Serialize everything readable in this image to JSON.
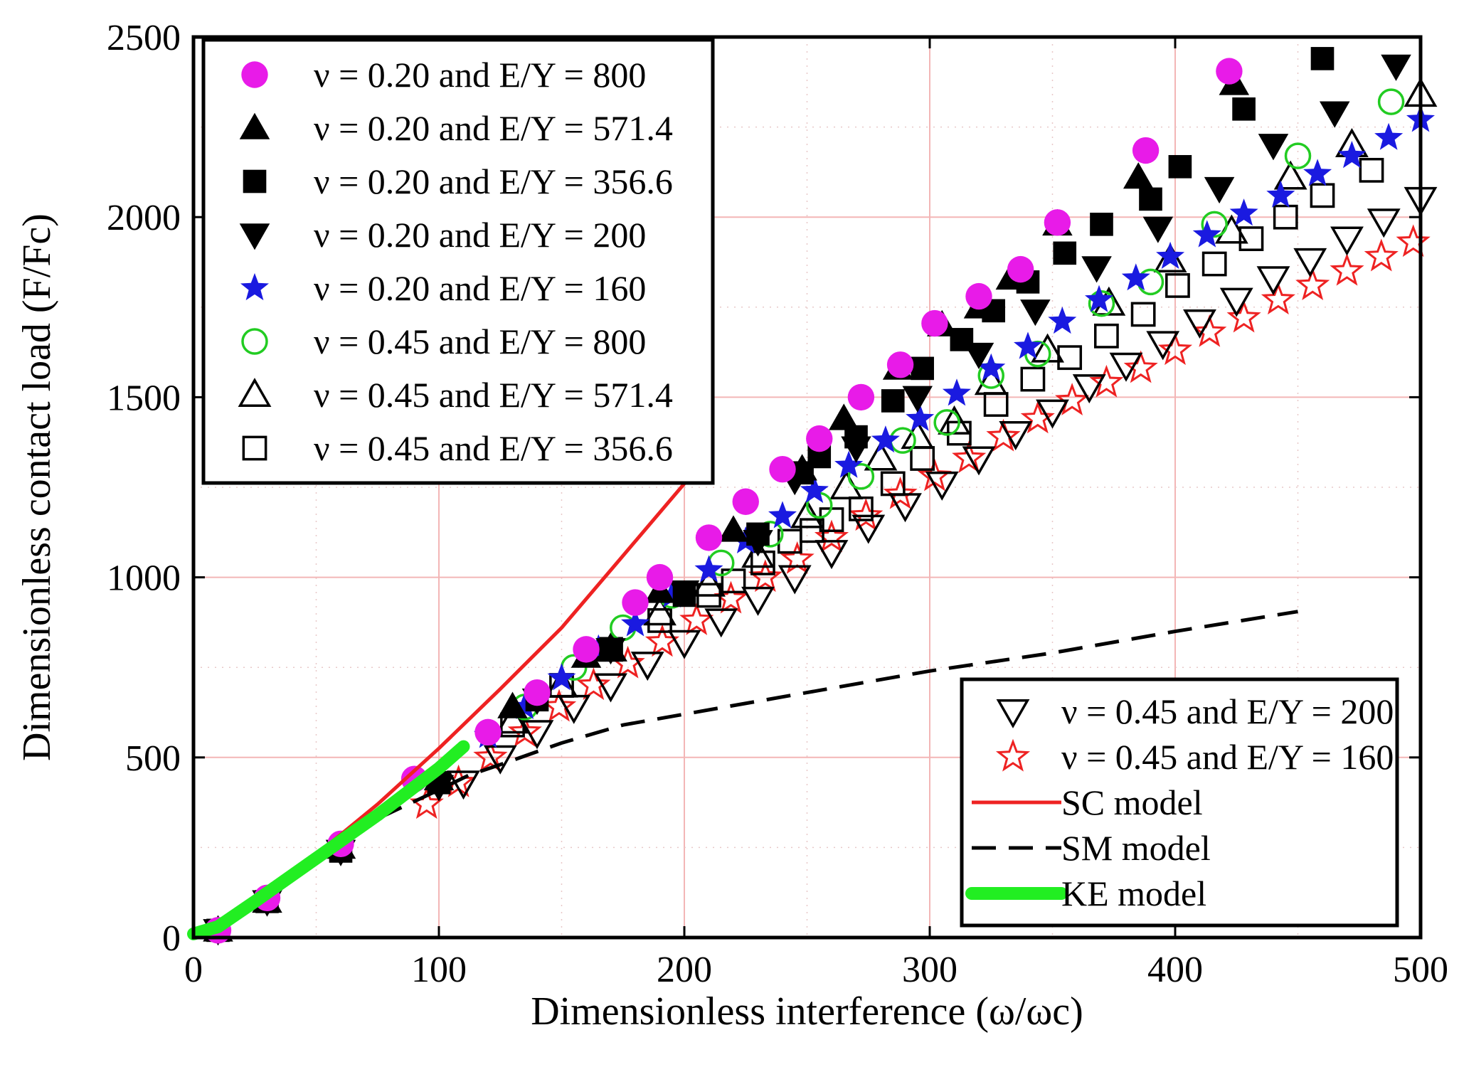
{
  "chart_data": {
    "type": "scatter",
    "xlabel": "Dimensionless interference (ω/ωc)",
    "ylabel": "Dimensionless contact load (F/Fc)",
    "xlim": [
      0,
      500
    ],
    "ylim": [
      0,
      2500
    ],
    "xticks": [
      "0",
      "100",
      "200",
      "300",
      "400",
      "500"
    ],
    "yticks": [
      "0",
      "500",
      "1000",
      "1500",
      "2000",
      "2500"
    ],
    "grid": true,
    "legend_positions": [
      "top-left",
      "bottom-right"
    ],
    "series": [
      {
        "name": "ν = 0.20 and E/Y = 800",
        "marker": "circle-filled",
        "color": "#e81be8",
        "x": [
          10,
          30,
          60,
          90,
          120,
          140,
          160,
          180,
          190,
          210,
          225,
          240,
          255,
          272,
          288,
          302,
          320,
          337,
          352,
          388,
          422
        ],
        "y": [
          20,
          110,
          260,
          440,
          570,
          680,
          800,
          930,
          1000,
          1110,
          1210,
          1300,
          1385,
          1500,
          1590,
          1705,
          1780,
          1855,
          1985,
          2185,
          2405
        ]
      },
      {
        "name": "ν = 0.20 and E/Y = 571.4",
        "marker": "triangle-up-filled",
        "color": "#000000",
        "x": [
          10,
          30,
          60,
          100,
          130,
          160,
          190,
          220,
          248,
          265,
          287,
          305,
          320,
          333,
          352,
          385,
          424
        ],
        "y": [
          20,
          100,
          250,
          440,
          640,
          780,
          960,
          1130,
          1300,
          1440,
          1580,
          1700,
          1750,
          1830,
          1980,
          2110,
          2370
        ]
      },
      {
        "name": "ν = 0.20 and E/Y = 356.6",
        "marker": "square-filled",
        "color": "#000000",
        "x": [
          10,
          30,
          60,
          100,
          140,
          170,
          200,
          230,
          248,
          255,
          270,
          285,
          297,
          313,
          326,
          340,
          355,
          370,
          390,
          402,
          428,
          460
        ],
        "y": [
          20,
          100,
          240,
          430,
          660,
          800,
          950,
          1120,
          1290,
          1335,
          1390,
          1490,
          1580,
          1660,
          1740,
          1820,
          1900,
          1980,
          2050,
          2140,
          2300,
          2440
        ]
      },
      {
        "name": "ν = 0.20 and E/Y = 200",
        "marker": "triangle-down-filled",
        "color": "#000000",
        "x": [
          10,
          30,
          60,
          100,
          140,
          170,
          200,
          230,
          245,
          270,
          295,
          320,
          343,
          368,
          393,
          418,
          440,
          465,
          490
        ],
        "y": [
          20,
          100,
          240,
          420,
          660,
          800,
          960,
          1100,
          1270,
          1360,
          1500,
          1620,
          1740,
          1860,
          1970,
          2080,
          2200,
          2290,
          2420
        ]
      },
      {
        "name": "ν = 0.20 and E/Y = 160",
        "marker": "star-filled",
        "color": "#1a1ae0",
        "x": [
          120,
          135,
          150,
          165,
          180,
          195,
          210,
          225,
          240,
          253,
          267,
          282,
          296,
          311,
          325,
          340,
          354,
          369,
          384,
          398,
          413,
          428,
          443,
          458,
          472,
          487,
          500
        ],
        "y": [
          560,
          640,
          720,
          800,
          870,
          950,
          1020,
          1100,
          1170,
          1240,
          1310,
          1380,
          1440,
          1510,
          1580,
          1640,
          1710,
          1770,
          1830,
          1890,
          1950,
          2010,
          2060,
          2120,
          2170,
          2220,
          2270
        ]
      },
      {
        "name": "ν = 0.45 and E/Y = 800",
        "marker": "circle-open",
        "color": "#22cc22",
        "x": [
          135,
          155,
          175,
          195,
          215,
          235,
          255,
          272,
          289,
          307,
          325,
          344,
          370,
          390,
          416,
          450,
          488
        ],
        "y": [
          640,
          750,
          860,
          950,
          1040,
          1120,
          1200,
          1280,
          1380,
          1430,
          1560,
          1620,
          1760,
          1820,
          1980,
          2170,
          2320
        ]
      },
      {
        "name": "ν = 0.45 and E/Y = 571.4",
        "marker": "triangle-up-open",
        "color": "#000000",
        "x": [
          130,
          150,
          170,
          190,
          210,
          230,
          250,
          266,
          280,
          295,
          310,
          325,
          348,
          373,
          398,
          423,
          447,
          472,
          500
        ],
        "y": [
          600,
          700,
          800,
          900,
          980,
          1060,
          1170,
          1250,
          1330,
          1390,
          1430,
          1540,
          1630,
          1760,
          1880,
          1960,
          2110,
          2200,
          2340
        ]
      },
      {
        "name": "ν = 0.45 and E/Y = 356.6",
        "marker": "square-open",
        "color": "#000000",
        "x": [
          130,
          150,
          170,
          190,
          210,
          220,
          232,
          243,
          252,
          260,
          272,
          285,
          297,
          312,
          327,
          342,
          357,
          372,
          387,
          401,
          416,
          431,
          445,
          460,
          480
        ],
        "y": [
          590,
          700,
          800,
          880,
          950,
          990,
          1040,
          1100,
          1130,
          1160,
          1190,
          1260,
          1330,
          1400,
          1480,
          1550,
          1610,
          1670,
          1730,
          1810,
          1870,
          1940,
          2000,
          2060,
          2130
        ]
      },
      {
        "name": "ν = 0.45 and E/Y = 200",
        "marker": "triangle-down-open",
        "color": "#000000",
        "x": [
          110,
          125,
          140,
          155,
          170,
          185,
          200,
          215,
          230,
          245,
          260,
          275,
          290,
          305,
          320,
          335,
          350,
          365,
          380,
          395,
          410,
          425,
          440,
          455,
          470,
          485,
          500
        ],
        "y": [
          430,
          500,
          570,
          640,
          700,
          760,
          820,
          880,
          940,
          1000,
          1070,
          1140,
          1200,
          1260,
          1330,
          1400,
          1460,
          1530,
          1590,
          1650,
          1710,
          1770,
          1830,
          1880,
          1940,
          1990,
          2050
        ]
      },
      {
        "name": "ν = 0.45 and E/Y = 160",
        "marker": "star-open",
        "color": "#ee2222",
        "x": [
          95,
          108,
          121,
          135,
          149,
          163,
          177,
          191,
          205,
          219,
          233,
          246,
          260,
          274,
          288,
          302,
          316,
          330,
          344,
          358,
          372,
          386,
          400,
          414,
          428,
          442,
          456,
          470,
          484,
          497
        ],
        "y": [
          370,
          430,
          500,
          570,
          640,
          700,
          760,
          820,
          880,
          940,
          1000,
          1050,
          1110,
          1170,
          1230,
          1280,
          1330,
          1390,
          1440,
          1490,
          1540,
          1580,
          1630,
          1680,
          1720,
          1770,
          1810,
          1850,
          1890,
          1930
        ]
      },
      {
        "name": "SC model",
        "marker": "line-solid",
        "color": "#ee2222",
        "x": [
          0,
          25,
          50,
          75,
          100,
          125,
          150,
          175,
          200
        ],
        "y": [
          0,
          95,
          230,
          370,
          525,
          690,
          860,
          1060,
          1260
        ]
      },
      {
        "name": "SM model",
        "marker": "line-dashed",
        "color": "#000000",
        "x": [
          0,
          25,
          50,
          75,
          100,
          112,
          125,
          150,
          175,
          200,
          250,
          300,
          350,
          400,
          450
        ],
        "y": [
          0,
          95,
          230,
          330,
          410,
          450,
          480,
          540,
          590,
          620,
          680,
          740,
          790,
          850,
          905
        ]
      },
      {
        "name": "KE model",
        "marker": "line-thick",
        "color": "#22ee22",
        "x": [
          0,
          10,
          25,
          50,
          75,
          100,
          110
        ],
        "y": [
          10,
          30,
          100,
          220,
          340,
          470,
          530
        ]
      }
    ]
  }
}
